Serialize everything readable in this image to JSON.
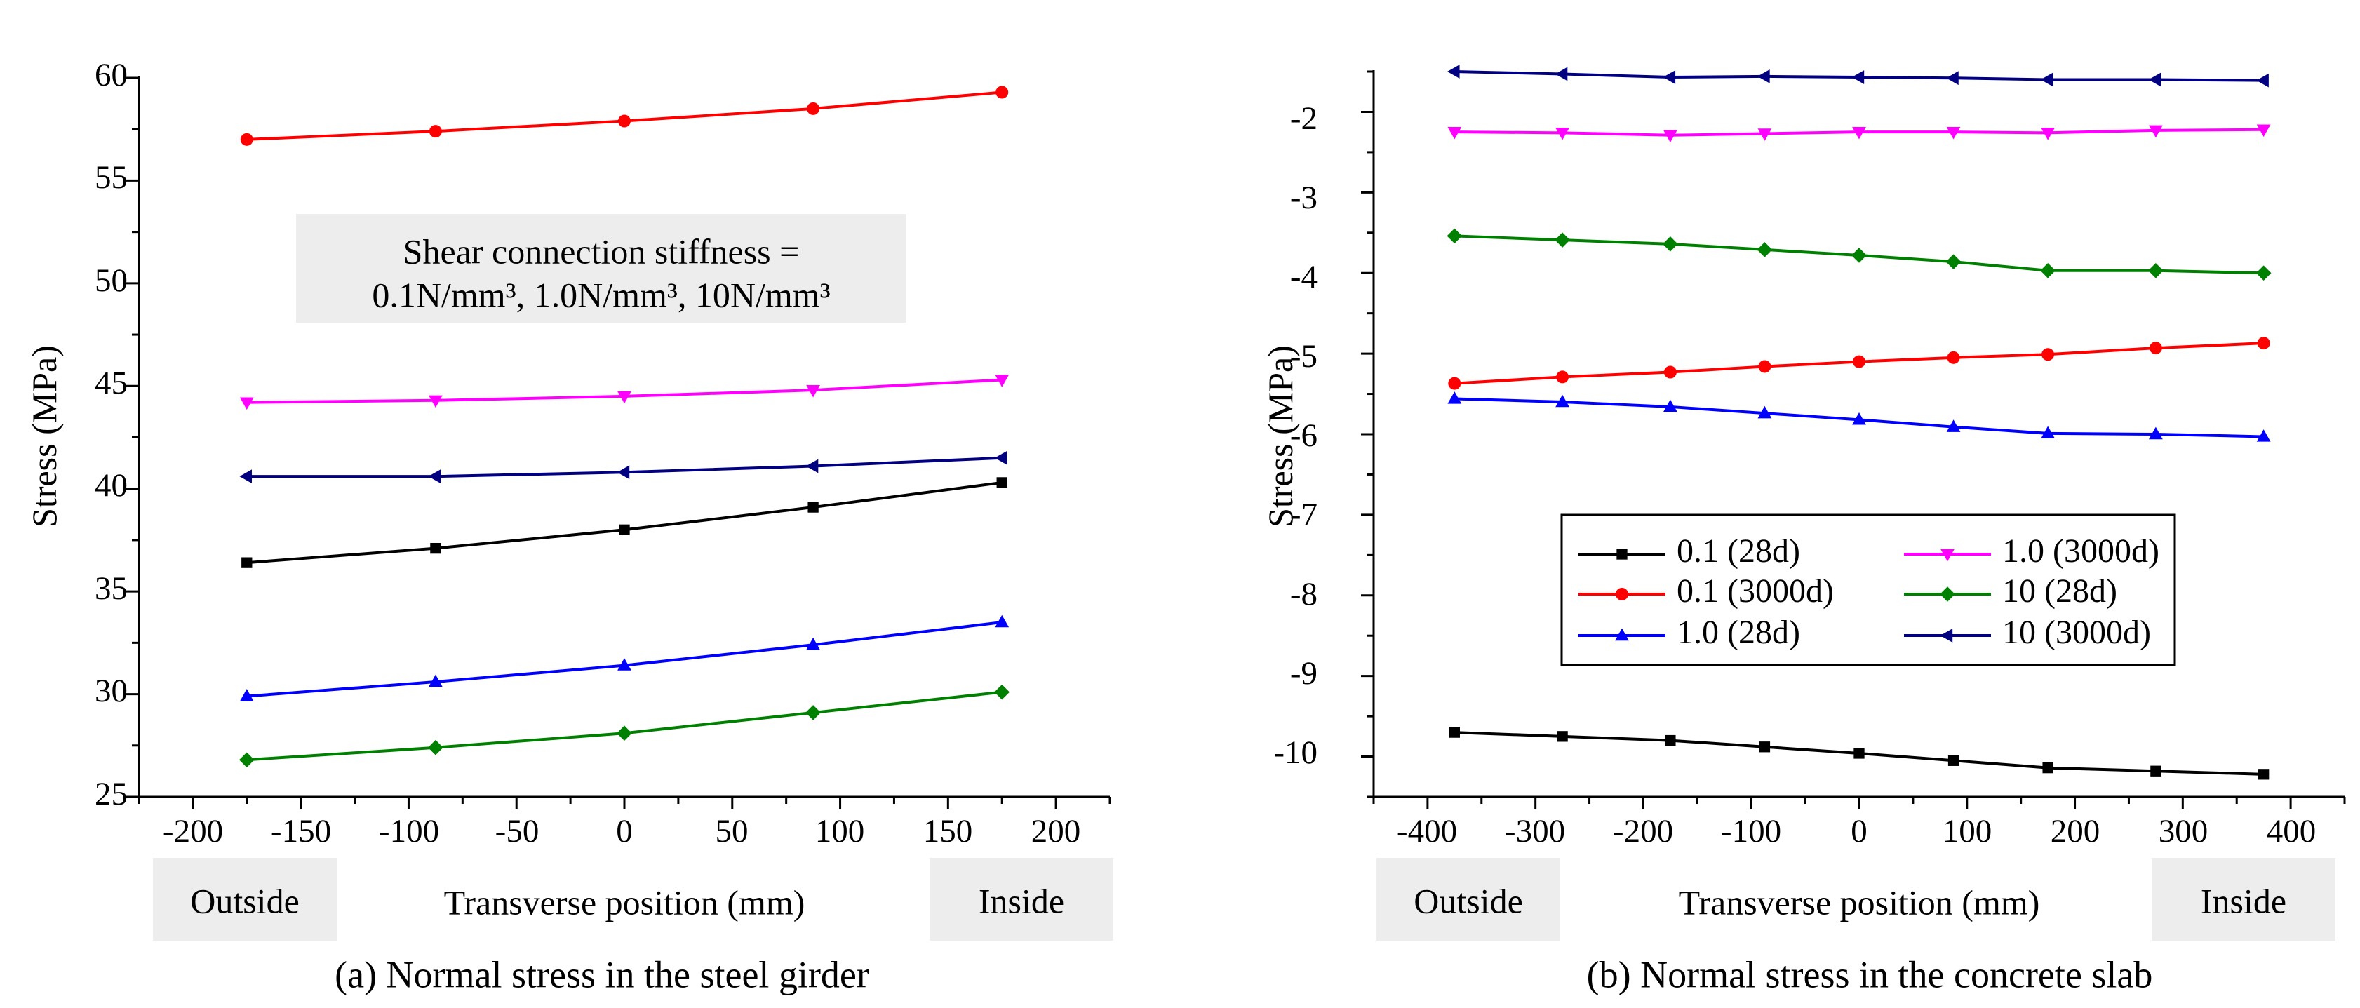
{
  "chart_data": [
    {
      "type": "line",
      "caption": "(a) Normal stress in the steel girder",
      "xlabel": "Transverse position (mm)",
      "ylabel": "Stress (MPa)",
      "xlim": [
        -225,
        225
      ],
      "ylim": [
        25,
        60
      ],
      "x_ticks": [
        "-200",
        "-150",
        "-100",
        "-50",
        "0",
        "50",
        "100",
        "150",
        "200"
      ],
      "y_ticks": [
        "25",
        "30",
        "35",
        "40",
        "45",
        "50",
        "55",
        "60"
      ],
      "left_label": "Outside",
      "right_label": "Inside",
      "annotation": {
        "line1": "Shear connection stiffness =",
        "line2": "0.1N/mm³, 1.0N/mm³, 10N/mm³"
      },
      "series": [
        {
          "name": "0.1 (28d)",
          "color": "#000000",
          "marker": "square",
          "x": [
            -175,
            -87.5,
            0,
            87.5,
            175
          ],
          "y": [
            36.4,
            37.1,
            38.0,
            39.1,
            40.3
          ]
        },
        {
          "name": "0.1 (3000d)",
          "color": "#ff0000",
          "marker": "circle",
          "x": [
            -175,
            -87.5,
            0,
            87.5,
            175
          ],
          "y": [
            57.0,
            57.4,
            57.9,
            58.5,
            59.3
          ]
        },
        {
          "name": "1.0 (28d)",
          "color": "#0000ff",
          "marker": "triangle-up",
          "x": [
            -175,
            -87.5,
            0,
            87.5,
            175
          ],
          "y": [
            29.9,
            30.6,
            31.4,
            32.4,
            33.5
          ]
        },
        {
          "name": "1.0 (3000d)",
          "color": "#ff00ff",
          "marker": "triangle-down",
          "x": [
            -175,
            -87.5,
            0,
            87.5,
            175
          ],
          "y": [
            44.2,
            44.3,
            44.5,
            44.8,
            45.3
          ]
        },
        {
          "name": "10 (28d)",
          "color": "#008000",
          "marker": "diamond",
          "x": [
            -175,
            -87.5,
            0,
            87.5,
            175
          ],
          "y": [
            26.8,
            27.4,
            28.1,
            29.1,
            30.1
          ]
        },
        {
          "name": "10 (3000d)",
          "color": "#000080",
          "marker": "triangle-left",
          "x": [
            -175,
            -87.5,
            0,
            87.5,
            175
          ],
          "y": [
            40.6,
            40.6,
            40.8,
            41.1,
            41.5
          ]
        }
      ]
    },
    {
      "type": "line",
      "caption": "(b) Normal stress in the concrete slab",
      "xlabel": "Transverse position (mm)",
      "ylabel": "Stress (MPa)",
      "xlim": [
        -450,
        450
      ],
      "ylim": [
        -10.5,
        -1.5
      ],
      "x_ticks": [
        "-400",
        "-300",
        "-200",
        "-100",
        "0",
        "100",
        "200",
        "300",
        "400"
      ],
      "y_ticks": [
        "-10",
        "-9",
        "-8",
        "-7",
        "-6",
        "-5",
        "-4",
        "-3",
        "-2"
      ],
      "left_label": "Outside",
      "right_label": "Inside",
      "legend": {
        "position": "center-right",
        "columns": 2
      },
      "series": [
        {
          "name": "0.1 (28d)",
          "color": "#000000",
          "marker": "square",
          "x": [
            -375,
            -275,
            -175,
            -87.5,
            0,
            87.5,
            175,
            275,
            375
          ],
          "y": [
            -9.7,
            -9.75,
            -9.8,
            -9.88,
            -9.96,
            -10.05,
            -10.14,
            -10.18,
            -10.22
          ]
        },
        {
          "name": "0.1 (3000d)",
          "color": "#ff0000",
          "marker": "circle",
          "x": [
            -375,
            -275,
            -175,
            -87.5,
            0,
            87.5,
            175,
            275,
            375
          ],
          "y": [
            -5.37,
            -5.29,
            -5.23,
            -5.16,
            -5.1,
            -5.05,
            -5.01,
            -4.93,
            -4.87
          ]
        },
        {
          "name": "1.0 (28d)",
          "color": "#0000ff",
          "marker": "triangle-up",
          "x": [
            -375,
            -275,
            -175,
            -87.5,
            0,
            87.5,
            175,
            275,
            375
          ],
          "y": [
            -5.56,
            -5.6,
            -5.66,
            -5.74,
            -5.82,
            -5.91,
            -5.99,
            -6.0,
            -6.03
          ]
        },
        {
          "name": "1.0 (3000d)",
          "color": "#ff00ff",
          "marker": "triangle-down",
          "x": [
            -375,
            -275,
            -175,
            -87.5,
            0,
            87.5,
            175,
            275,
            375
          ],
          "y": [
            -2.25,
            -2.26,
            -2.29,
            -2.27,
            -2.25,
            -2.25,
            -2.26,
            -2.23,
            -2.22
          ]
        },
        {
          "name": "10 (28d)",
          "color": "#008000",
          "marker": "diamond",
          "x": [
            -375,
            -275,
            -175,
            -87.5,
            0,
            87.5,
            175,
            275,
            375
          ],
          "y": [
            -3.54,
            -3.59,
            -3.64,
            -3.71,
            -3.78,
            -3.86,
            -3.97,
            -3.97,
            -4.0
          ]
        },
        {
          "name": "10 (3000d)",
          "color": "#000080",
          "marker": "triangle-left",
          "x": [
            -375,
            -275,
            -175,
            -87.5,
            0,
            87.5,
            175,
            275,
            375
          ],
          "y": [
            -1.5,
            -1.53,
            -1.57,
            -1.56,
            -1.57,
            -1.58,
            -1.6,
            -1.6,
            -1.61
          ]
        }
      ]
    }
  ]
}
